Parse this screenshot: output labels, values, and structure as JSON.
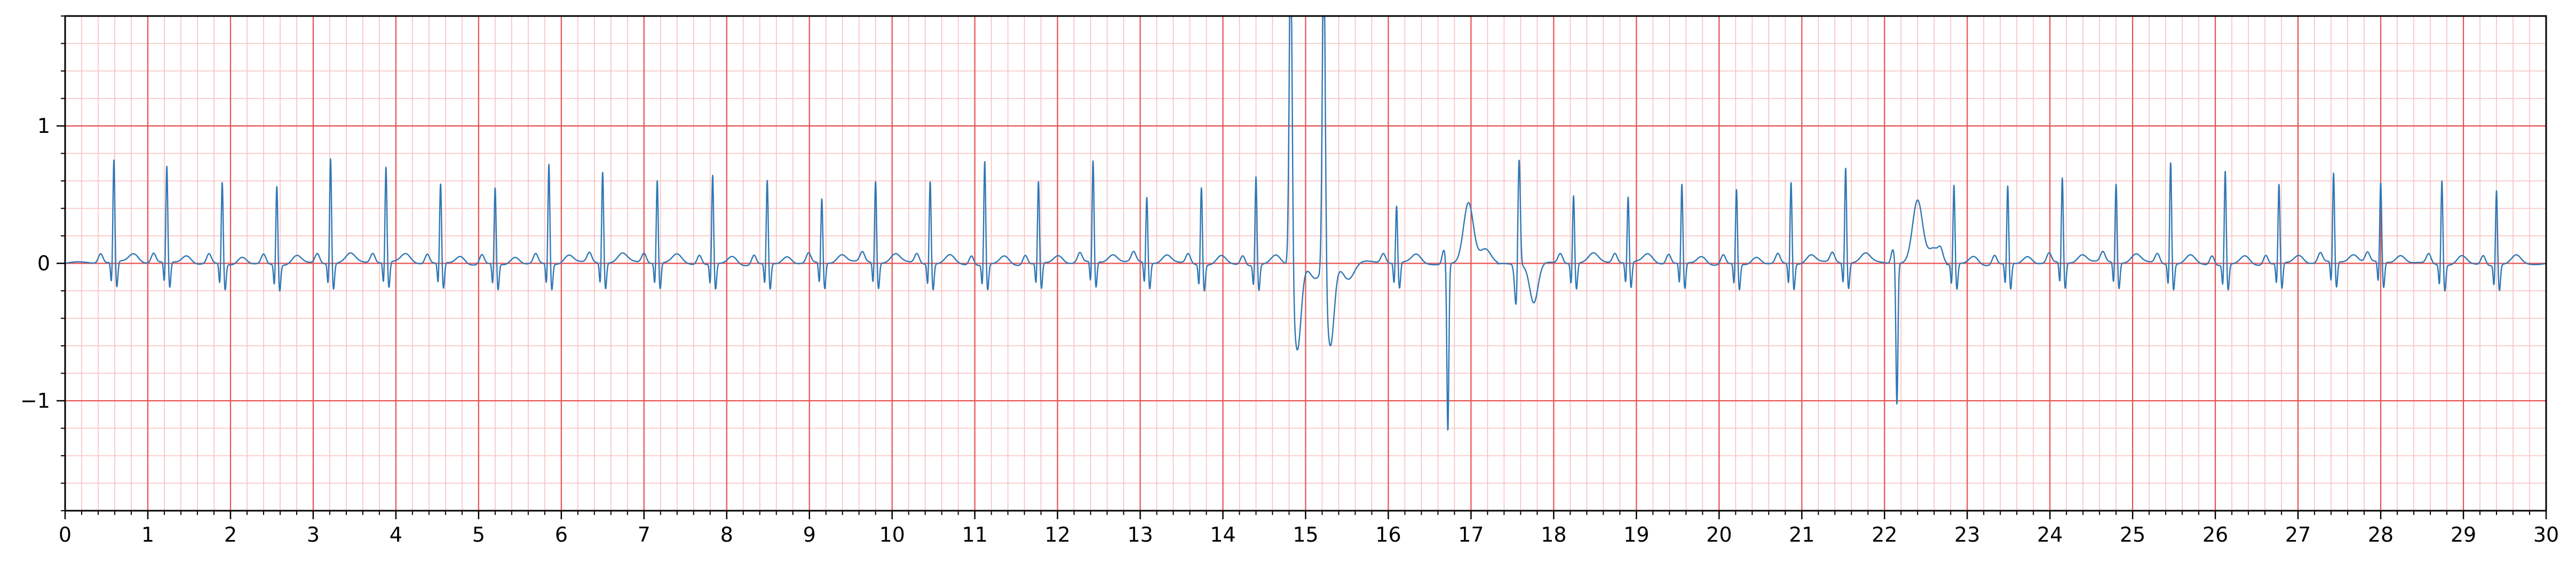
{
  "chart_data": {
    "type": "line",
    "title": "",
    "xlabel": "",
    "ylabel": "",
    "xlim": [
      0,
      30
    ],
    "ylim": [
      -1.8,
      1.8
    ],
    "x_ticks": [
      0,
      1,
      2,
      3,
      4,
      5,
      6,
      7,
      8,
      9,
      10,
      11,
      12,
      13,
      14,
      15,
      16,
      17,
      18,
      19,
      20,
      21,
      22,
      23,
      24,
      25,
      26,
      27,
      28,
      29,
      30
    ],
    "x_tick_labels": [
      "0",
      "1",
      "2",
      "3",
      "4",
      "5",
      "6",
      "7",
      "8",
      "9",
      "10",
      "11",
      "12",
      "13",
      "14",
      "15",
      "16",
      "17",
      "18",
      "19",
      "20",
      "21",
      "22",
      "23",
      "24",
      "25",
      "26",
      "27",
      "28",
      "29",
      "30"
    ],
    "y_ticks": [
      -1,
      0,
      1
    ],
    "y_tick_labels": [
      "−1",
      "0",
      "1"
    ],
    "grid": {
      "major": true,
      "minor": true,
      "major_x_step": 1,
      "minor_x_step": 0.2,
      "major_y_step": 1,
      "minor_y_step": 0.2,
      "major_color": "#e85050",
      "minor_color": "#f8c0c0"
    },
    "series": [
      {
        "line_color": "#2f77b4",
        "beats": [
          {
            "t": 0.59,
            "r": 0.75,
            "kind": "normal"
          },
          {
            "t": 1.23,
            "r": 0.7,
            "kind": "normal"
          },
          {
            "t": 1.9,
            "r": 0.6,
            "kind": "normal"
          },
          {
            "t": 2.56,
            "r": 0.58,
            "kind": "normal"
          },
          {
            "t": 3.21,
            "r": 0.77,
            "kind": "normal"
          },
          {
            "t": 3.88,
            "r": 0.7,
            "kind": "normal"
          },
          {
            "t": 4.54,
            "r": 0.58,
            "kind": "normal"
          },
          {
            "t": 5.2,
            "r": 0.56,
            "kind": "normal"
          },
          {
            "t": 5.85,
            "r": 0.73,
            "kind": "normal"
          },
          {
            "t": 6.5,
            "r": 0.67,
            "kind": "normal"
          },
          {
            "t": 7.16,
            "r": 0.61,
            "kind": "normal"
          },
          {
            "t": 7.83,
            "r": 0.65,
            "kind": "normal"
          },
          {
            "t": 8.49,
            "r": 0.61,
            "kind": "normal"
          },
          {
            "t": 9.15,
            "r": 0.47,
            "kind": "normal"
          },
          {
            "t": 9.8,
            "r": 0.6,
            "kind": "normal"
          },
          {
            "t": 10.46,
            "r": 0.61,
            "kind": "normal"
          },
          {
            "t": 11.12,
            "r": 0.76,
            "kind": "normal"
          },
          {
            "t": 11.77,
            "r": 0.6,
            "kind": "normal"
          },
          {
            "t": 12.43,
            "r": 0.74,
            "kind": "normal"
          },
          {
            "t": 13.08,
            "r": 0.48,
            "kind": "normal"
          },
          {
            "t": 13.74,
            "r": 0.57,
            "kind": "normal"
          },
          {
            "t": 14.4,
            "r": 0.65,
            "kind": "normal"
          },
          {
            "t": 14.82,
            "r": 1.8,
            "kind": "pvc",
            "s": -0.62
          },
          {
            "t": 15.22,
            "r": 1.8,
            "kind": "pvc",
            "s": -0.6
          },
          {
            "t": 16.1,
            "r": 0.42,
            "kind": "normal"
          },
          {
            "t": 16.72,
            "r": -1.22,
            "kind": "inverted"
          },
          {
            "t": 17.58,
            "r": 0.87,
            "kind": "wide"
          },
          {
            "t": 18.24,
            "r": 0.5,
            "kind": "normal"
          },
          {
            "t": 18.9,
            "r": 0.48,
            "kind": "normal"
          },
          {
            "t": 19.55,
            "r": 0.58,
            "kind": "normal"
          },
          {
            "t": 20.21,
            "r": 0.55,
            "kind": "normal"
          },
          {
            "t": 20.87,
            "r": 0.6,
            "kind": "normal"
          },
          {
            "t": 21.53,
            "r": 0.7,
            "kind": "normal"
          },
          {
            "t": 22.15,
            "r": -1.03,
            "kind": "inverted"
          },
          {
            "t": 22.84,
            "r": 0.58,
            "kind": "normal"
          },
          {
            "t": 23.49,
            "r": 0.57,
            "kind": "normal"
          },
          {
            "t": 24.15,
            "r": 0.62,
            "kind": "normal"
          },
          {
            "t": 24.8,
            "r": 0.58,
            "kind": "normal"
          },
          {
            "t": 25.46,
            "r": 0.75,
            "kind": "normal"
          },
          {
            "t": 26.12,
            "r": 0.69,
            "kind": "normal"
          },
          {
            "t": 26.77,
            "r": 0.58,
            "kind": "normal"
          },
          {
            "t": 27.43,
            "r": 0.65,
            "kind": "normal"
          },
          {
            "t": 28.0,
            "r": 0.58,
            "kind": "normal"
          },
          {
            "t": 28.74,
            "r": 0.62,
            "kind": "normal"
          },
          {
            "t": 29.4,
            "r": 0.55,
            "kind": "normal"
          }
        ]
      }
    ]
  }
}
